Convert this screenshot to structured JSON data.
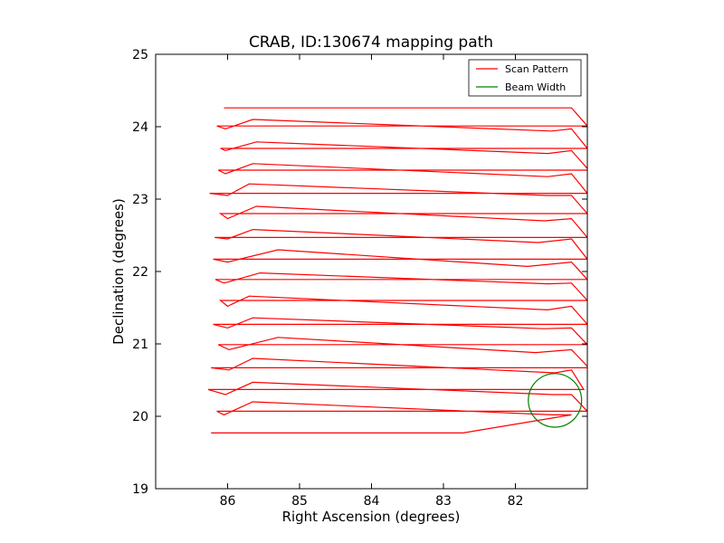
{
  "chart_data": {
    "type": "line",
    "title": "CRAB, ID:130674 mapping path",
    "xlabel": "Right Ascension (degrees)",
    "ylabel": "Declination (degrees)",
    "xlim": [
      87.0,
      81.0
    ],
    "ylim": [
      19,
      25
    ],
    "x_reversed": true,
    "xticks": [
      86,
      85,
      84,
      83,
      82
    ],
    "xtick_labels": [
      "86",
      "85",
      "84",
      "83",
      "82"
    ],
    "yticks": [
      19,
      20,
      21,
      22,
      23,
      24,
      25
    ],
    "ytick_labels": [
      "19",
      "20",
      "21",
      "22",
      "23",
      "24",
      "25"
    ],
    "grid": false,
    "legend_position": "top-right",
    "series": [
      {
        "name": "Scan Pattern",
        "color": "#ff0000",
        "rows": [
          {
            "dec": 19.77,
            "left": 86.23,
            "right": 82.73,
            "direction": "right"
          },
          {
            "dec": 20.02,
            "left": 86.05,
            "right": 81.22,
            "direction": "left",
            "peak_ra": 85.65,
            "peak_dec": 20.2,
            "dip_ra": 81.48,
            "dip_dec": 20.02
          },
          {
            "dec": 20.07,
            "left": 86.15,
            "right": 81.0,
            "direction": "right"
          },
          {
            "dec": 20.3,
            "left": 86.03,
            "right": 81.22,
            "direction": "left",
            "peak_ra": 85.65,
            "peak_dec": 20.47,
            "dip_ra": 81.48,
            "dip_dec": 20.3
          },
          {
            "dec": 20.37,
            "left": 86.27,
            "right": 81.05,
            "direction": "right"
          },
          {
            "dec": 20.64,
            "left": 85.98,
            "right": 81.22,
            "direction": "left",
            "peak_ra": 85.65,
            "peak_dec": 20.8,
            "dip_ra": 81.45,
            "dip_dec": 20.6
          },
          {
            "dec": 20.67,
            "left": 86.23,
            "right": 80.98,
            "direction": "right"
          },
          {
            "dec": 20.92,
            "left": 85.98,
            "right": 81.22,
            "direction": "left",
            "peak_ra": 85.3,
            "peak_dec": 21.09,
            "dip_ra": 81.72,
            "dip_dec": 20.88
          },
          {
            "dec": 20.99,
            "left": 86.13,
            "right": 81.0,
            "direction": "right"
          },
          {
            "dec": 21.22,
            "left": 86.0,
            "right": 81.22,
            "direction": "left",
            "peak_ra": 85.65,
            "peak_dec": 21.36,
            "dip_ra": 81.6,
            "dip_dec": 21.21
          },
          {
            "dec": 21.27,
            "left": 86.2,
            "right": 81.0,
            "direction": "right"
          },
          {
            "dec": 21.52,
            "left": 86.0,
            "right": 81.22,
            "direction": "left",
            "peak_ra": 85.7,
            "peak_dec": 21.66,
            "dip_ra": 81.55,
            "dip_dec": 21.47
          },
          {
            "dec": 21.6,
            "left": 86.1,
            "right": 81.0,
            "direction": "right"
          },
          {
            "dec": 21.84,
            "left": 86.05,
            "right": 81.22,
            "direction": "left",
            "peak_ra": 85.55,
            "peak_dec": 21.98,
            "dip_ra": 81.55,
            "dip_dec": 21.83
          },
          {
            "dec": 21.89,
            "left": 86.17,
            "right": 81.0,
            "direction": "right"
          },
          {
            "dec": 22.13,
            "left": 86.0,
            "right": 81.22,
            "direction": "left",
            "peak_ra": 85.3,
            "peak_dec": 22.3,
            "dip_ra": 81.83,
            "dip_dec": 22.07
          },
          {
            "dec": 22.17,
            "left": 86.2,
            "right": 81.0,
            "direction": "right"
          },
          {
            "dec": 22.45,
            "left": 86.0,
            "right": 81.22,
            "direction": "left",
            "peak_ra": 85.65,
            "peak_dec": 22.58,
            "dip_ra": 81.68,
            "dip_dec": 22.4
          },
          {
            "dec": 22.47,
            "left": 86.18,
            "right": 81.0,
            "direction": "right"
          },
          {
            "dec": 22.73,
            "left": 86.0,
            "right": 81.22,
            "direction": "left",
            "peak_ra": 85.6,
            "peak_dec": 22.9,
            "dip_ra": 81.6,
            "dip_dec": 22.7
          },
          {
            "dec": 22.8,
            "left": 86.1,
            "right": 81.0,
            "direction": "right"
          },
          {
            "dec": 23.05,
            "left": 86.0,
            "right": 81.22,
            "direction": "left",
            "peak_ra": 85.7,
            "peak_dec": 23.21,
            "dip_ra": 81.55,
            "dip_dec": 23.05
          },
          {
            "dec": 23.08,
            "left": 86.25,
            "right": 81.0,
            "direction": "right"
          },
          {
            "dec": 23.35,
            "left": 86.03,
            "right": 81.22,
            "direction": "left",
            "peak_ra": 85.65,
            "peak_dec": 23.49,
            "dip_ra": 81.55,
            "dip_dec": 23.31
          },
          {
            "dec": 23.4,
            "left": 86.13,
            "right": 80.98,
            "direction": "right"
          },
          {
            "dec": 23.67,
            "left": 86.03,
            "right": 81.22,
            "direction": "left",
            "peak_ra": 85.6,
            "peak_dec": 23.79,
            "dip_ra": 81.55,
            "dip_dec": 23.63
          },
          {
            "dec": 23.7,
            "left": 86.1,
            "right": 81.0,
            "direction": "right"
          },
          {
            "dec": 23.97,
            "left": 86.03,
            "right": 81.22,
            "direction": "left",
            "peak_ra": 85.65,
            "peak_dec": 24.1,
            "dip_ra": 81.5,
            "dip_dec": 23.94
          },
          {
            "dec": 24.01,
            "left": 86.15,
            "right": 81.0,
            "direction": "right"
          },
          {
            "dec": 24.26,
            "left": 86.05,
            "right": 81.22,
            "direction": "left"
          }
        ]
      },
      {
        "name": "Beam Width",
        "color": "#008000",
        "type": "circle",
        "center": [
          81.45,
          20.22
        ],
        "radius": 0.37
      }
    ]
  }
}
